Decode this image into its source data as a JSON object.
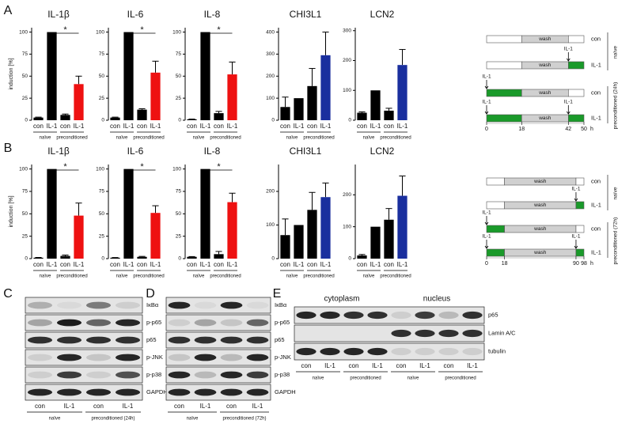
{
  "panels": [
    "A",
    "B",
    "C",
    "D",
    "E"
  ],
  "chart_data": [
    {
      "type": "bar",
      "title": "IL-1β",
      "ylabel": "induction [%]",
      "categories": [
        "con",
        "IL-1",
        "con",
        "IL-1"
      ],
      "groups": [
        "naïve",
        "preconditioned"
      ],
      "values": [
        3,
        100,
        6,
        41
      ],
      "errors": [
        0.5,
        null,
        1,
        9
      ],
      "colors": [
        "#000000",
        "#000000",
        "#000000",
        "#ee1111"
      ],
      "ylim": [
        0,
        105
      ],
      "yticks": [
        0,
        25,
        50,
        75,
        100
      ],
      "annotation": "*"
    },
    {
      "type": "bar",
      "title": "IL-6",
      "categories": [
        "con",
        "IL-1",
        "con",
        "IL-1"
      ],
      "groups": [
        "naïve",
        "preconditioned"
      ],
      "values": [
        3,
        100,
        12,
        54
      ],
      "errors": [
        0.5,
        null,
        1,
        13
      ],
      "colors": [
        "#000000",
        "#000000",
        "#000000",
        "#ee1111"
      ],
      "ylim": [
        0,
        105
      ],
      "yticks": [
        0,
        25,
        50,
        75,
        100
      ],
      "annotation": "*"
    },
    {
      "type": "bar",
      "title": "IL-8",
      "categories": [
        "con",
        "IL-1",
        "con",
        "IL-1"
      ],
      "groups": [
        "naïve",
        "preconditioned"
      ],
      "values": [
        1,
        100,
        8,
        52
      ],
      "errors": [
        0.3,
        null,
        2,
        14
      ],
      "colors": [
        "#000000",
        "#000000",
        "#000000",
        "#ee1111"
      ],
      "ylim": [
        0,
        105
      ],
      "yticks": [
        0,
        25,
        50,
        75,
        100
      ],
      "annotation": "*"
    },
    {
      "type": "bar",
      "title": "CHI3L1",
      "categories": [
        "con",
        "IL-1",
        "con",
        "IL-1"
      ],
      "groups": [
        "naïve",
        "preconditioned"
      ],
      "values": [
        60,
        100,
        155,
        295
      ],
      "errors": [
        45,
        null,
        80,
        105
      ],
      "colors": [
        "#000000",
        "#000000",
        "#000000",
        "#1a2f9e"
      ],
      "ylim": [
        0,
        420
      ],
      "yticks": [
        0,
        100,
        200,
        300,
        400
      ]
    },
    {
      "type": "bar",
      "title": "LCN2",
      "categories": [
        "con",
        "IL-1",
        "con",
        "IL-1"
      ],
      "groups": [
        "naïve",
        "preconditioned"
      ],
      "values": [
        25,
        100,
        32,
        185
      ],
      "errors": [
        3,
        null,
        8,
        52
      ],
      "colors": [
        "#000000",
        "#000000",
        "#000000",
        "#1a2f9e"
      ],
      "ylim": [
        0,
        310
      ],
      "yticks": [
        0,
        100,
        200,
        300
      ]
    },
    {
      "type": "bar",
      "title": "IL-1β",
      "ylabel": "induction [%]",
      "categories": [
        "con",
        "IL-1",
        "con",
        "IL-1"
      ],
      "groups": [
        "naïve",
        "preconditioned"
      ],
      "values": [
        1,
        100,
        3,
        48
      ],
      "errors": [
        0.3,
        null,
        1,
        14
      ],
      "colors": [
        "#000000",
        "#000000",
        "#000000",
        "#ee1111"
      ],
      "ylim": [
        0,
        105
      ],
      "yticks": [
        0,
        25,
        50,
        75,
        100
      ],
      "annotation": "*"
    },
    {
      "type": "bar",
      "title": "IL-6",
      "categories": [
        "con",
        "IL-1",
        "con",
        "IL-1"
      ],
      "groups": [
        "naïve",
        "preconditioned"
      ],
      "values": [
        1,
        100,
        2,
        51
      ],
      "errors": [
        0.2,
        null,
        0.5,
        8
      ],
      "colors": [
        "#000000",
        "#000000",
        "#000000",
        "#ee1111"
      ],
      "ylim": [
        0,
        105
      ],
      "yticks": [
        0,
        25,
        50,
        75,
        100
      ],
      "annotation": "*"
    },
    {
      "type": "bar",
      "title": "IL-8",
      "categories": [
        "con",
        "IL-1",
        "con",
        "IL-1"
      ],
      "groups": [
        "naïve",
        "preconditioned"
      ],
      "values": [
        2,
        100,
        5,
        63
      ],
      "errors": [
        0.3,
        null,
        3,
        10
      ],
      "colors": [
        "#000000",
        "#000000",
        "#000000",
        "#ee1111"
      ],
      "ylim": [
        0,
        105
      ],
      "yticks": [
        0,
        25,
        50,
        75,
        100
      ],
      "annotation": "*"
    },
    {
      "type": "bar",
      "title": "CHI3L1",
      "categories": [
        "con",
        "IL-1",
        "con",
        "IL-1"
      ],
      "groups": [
        "naïve",
        "preconditioned"
      ],
      "values": [
        70,
        100,
        145,
        183
      ],
      "errors": [
        48,
        null,
        52,
        42
      ],
      "colors": [
        "#000000",
        "#000000",
        "#000000",
        "#1a2f9e"
      ],
      "ylim": [
        0,
        280
      ],
      "yticks": [
        0,
        100,
        200
      ]
    },
    {
      "type": "bar",
      "title": "LCN2",
      "categories": [
        "con",
        "IL-1",
        "con",
        "IL-1"
      ],
      "groups": [
        "naïve",
        "preconditioned"
      ],
      "values": [
        10,
        100,
        122,
        197
      ],
      "errors": [
        3,
        null,
        35,
        62
      ],
      "colors": [
        "#000000",
        "#000000",
        "#000000",
        "#1a2f9e"
      ],
      "ylim": [
        0,
        295
      ],
      "yticks": [
        0,
        100,
        200
      ]
    }
  ],
  "schematics": [
    {
      "wash": "wash",
      "rows": [
        {
          "label": "con",
          "arrows": []
        },
        {
          "label": "IL-1",
          "arrows": [
            "IL-1"
          ]
        },
        {
          "label": "con",
          "arrows": [
            "IL-1"
          ]
        },
        {
          "label": "IL-1",
          "arrows": [
            "IL-1",
            "IL-1"
          ]
        }
      ],
      "time_ticks": [
        0,
        18,
        42,
        50
      ],
      "time_unit": "h",
      "groups": [
        "naïve",
        "preconditioned (24h)"
      ]
    },
    {
      "wash": "wash",
      "rows": [
        {
          "label": "con",
          "arrows": []
        },
        {
          "label": "IL-1",
          "arrows": [
            "IL-1"
          ]
        },
        {
          "label": "con",
          "arrows": [
            "IL-1"
          ]
        },
        {
          "label": "IL-1",
          "arrows": [
            "IL-1",
            "IL-1"
          ]
        }
      ],
      "time_ticks": [
        0,
        18,
        90,
        98
      ],
      "time_unit": "h",
      "groups": [
        "naïve",
        "preconditioned (72h)"
      ]
    }
  ],
  "blots": [
    {
      "rows": [
        "IκBα",
        "p-p65",
        "p65",
        "p-JNK",
        "p-p38",
        "GAPDH"
      ],
      "lanes": [
        "con",
        "IL-1",
        "con",
        "IL-1"
      ],
      "groups": [
        "naïve",
        "preconditioned (24h)"
      ]
    },
    {
      "rows": [
        "IκBα",
        "p-p65",
        "p65",
        "p-JNK",
        "p-p38",
        "GAPDH"
      ],
      "lanes": [
        "con",
        "IL-1",
        "con",
        "IL-1"
      ],
      "groups": [
        "naïve",
        "preconditioned (72h)"
      ]
    },
    {
      "headers": [
        "cytoplasm",
        "nucleus"
      ],
      "rows": [
        "p65",
        "Lamin A/C",
        "tubulin"
      ],
      "lanes": [
        "con",
        "IL-1",
        "con",
        "IL-1",
        "con",
        "IL-1",
        "con",
        "IL-1"
      ],
      "groups": [
        "naïve",
        "preconditioned",
        "naïve",
        "preconditioned"
      ]
    }
  ]
}
